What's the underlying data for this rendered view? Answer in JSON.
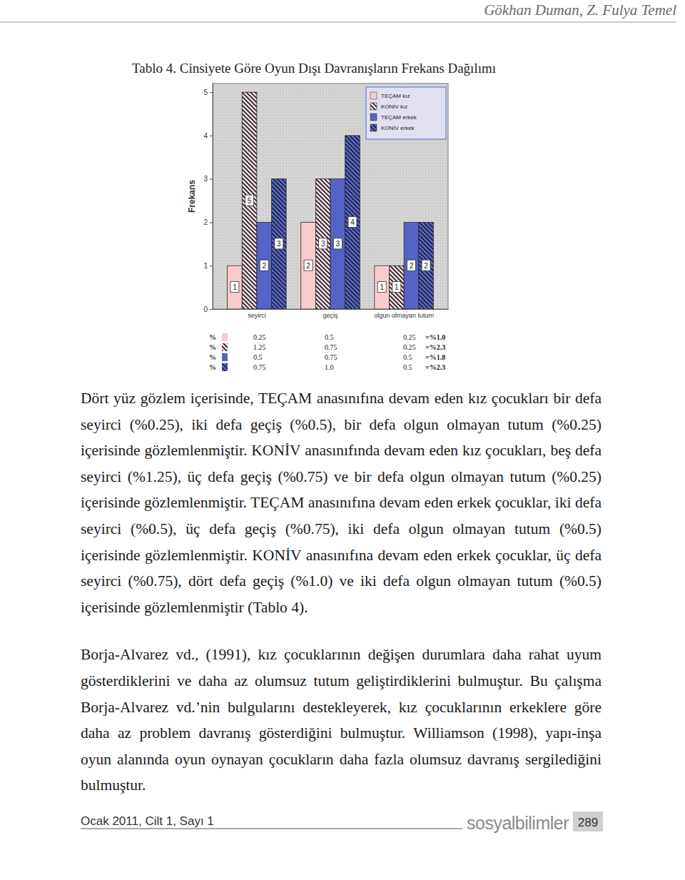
{
  "header": {
    "authors": "Gökhan Duman, Z. Fulya Temel"
  },
  "caption": "Tablo 4. Cinsiyete Göre Oyun Dışı Davranışların Frekans Dağılımı",
  "chart_data": {
    "type": "bar",
    "y_label": "Frekans",
    "categories": [
      "seyirci",
      "geçiş",
      "olgun olmayan tutum"
    ],
    "series": [
      {
        "name": "TEÇAM kız",
        "color": "#f8cccc",
        "values": [
          1,
          2,
          1
        ]
      },
      {
        "name": "KONİV kız",
        "color": "#f4dcdc",
        "values": [
          5,
          3,
          1
        ]
      },
      {
        "name": "TEÇAM erkek",
        "color": "#5563c6",
        "values": [
          2,
          3,
          2
        ]
      },
      {
        "name": "KONİV erkek",
        "color": "#5a68cc",
        "values": [
          3,
          4,
          2
        ]
      }
    ],
    "ylim": [
      0,
      5.2
    ],
    "yticks": [
      0,
      1,
      2,
      3,
      4,
      5
    ],
    "grid": false,
    "legend": "top-right",
    "data_labels": true
  },
  "percent_table": {
    "rows": [
      {
        "symbol": "%",
        "cells": [
          "0.25",
          "0.5",
          "0.25"
        ],
        "total": "=%1.0"
      },
      {
        "symbol": "%",
        "cells": [
          "1.25",
          "0.75",
          "0.25"
        ],
        "total": "=%2.3"
      },
      {
        "symbol": "%",
        "cells": [
          "0.5",
          "0.75",
          "0.5"
        ],
        "total": "=%1.8"
      },
      {
        "symbol": "%",
        "cells": [
          "0.75",
          "1.0",
          "0.5"
        ],
        "total": "=%2.3"
      }
    ]
  },
  "paragraphs": [
    "Dört yüz gözlem içerisinde, TEÇAM anasınıfına devam eden kız çocukları bir defa seyirci (%0.25), iki defa geçiş (%0.5), bir defa olgun olmayan tutum (%0.25) içerisinde gözlemlenmiştir. KONİV anasınıfında devam eden kız çocukları, beş defa seyirci (%1.25), üç defa geçiş (%0.75) ve bir defa olgun olmayan tutum (%0.25) içerisinde gözlemlenmiştir. TEÇAM anasınıfına devam eden erkek çocuklar, iki defa seyirci (%0.5), üç defa geçiş (%0.75), iki defa olgun olmayan tutum (%0.5) içerisinde gözlemlenmiştir. KONİV anasınıfına devam eden erkek çocuklar, üç defa seyirci (%0.75), dört defa geçiş (%1.0) ve iki defa olgun olmayan tutum (%0.5) içerisinde gözlemlenmiştir (Tablo 4).",
    "Borja-Alvarez vd., (1991), kız çocuklarının değişen durumlara daha rahat uyum gösterdiklerini ve daha az olumsuz tutum geliştirdiklerini bulmuştur. Bu çalışma Borja-Alvarez vd.’nin bulgularını destekleyerek, kız çocuklarının erkeklere göre daha az problem davranış gösterdiğini bulmuştur. Williamson (1998), yapı-inşa oyun alanında oyun oynayan çocukların daha fazla olumsuz davranış sergilediğini bulmuştur."
  ],
  "footer": {
    "issue": "Ocak 2011, Cilt 1, Sayı 1",
    "journal": "sosyalbilimler",
    "page": "289"
  }
}
